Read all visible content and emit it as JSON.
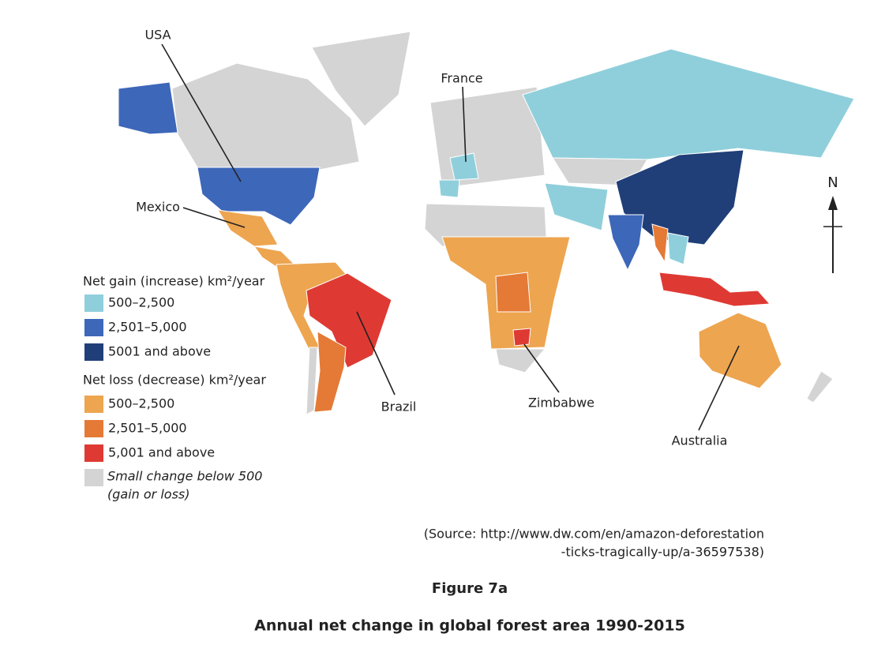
{
  "map": {
    "labels": [
      "USA",
      "France",
      "Mexico",
      "Brazil",
      "Zimbabwe",
      "Australia"
    ],
    "north": "N"
  },
  "legend": {
    "gain": {
      "title": "Net gain (increase) km²/year",
      "items": [
        {
          "label": "500–2,500",
          "color": "#8fcfdb"
        },
        {
          "label": "2,501–5,000",
          "color": "#3d67b9"
        },
        {
          "label": "5001 and above",
          "color": "#203f78"
        }
      ]
    },
    "loss": {
      "title": "Net loss (decrease) km²/year",
      "items": [
        {
          "label": "500–2,500",
          "color": "#eda550"
        },
        {
          "label": "2,501–5,000",
          "color": "#e47a36"
        },
        {
          "label": "5,001 and above",
          "color": "#de3a33"
        }
      ]
    },
    "other": {
      "lines": [
        "Small change below 500",
        "(gain or loss)"
      ],
      "color": "#d4d4d4"
    }
  },
  "source": [
    "(Source: http://www.dw.com/en/amazon-deforestation",
    "-ticks-tragically-up/a-36597538)"
  ],
  "figure": "Figure 7a",
  "caption": "Annual net change in global forest area 1990-2015"
}
